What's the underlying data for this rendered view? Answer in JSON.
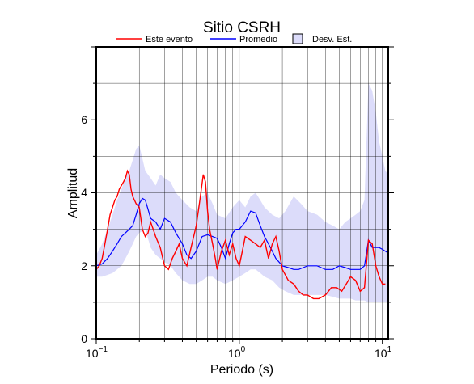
{
  "chart_data": {
    "type": "line",
    "title": "Sitio CSRH",
    "xlabel": "Periodo (s)",
    "ylabel": "Amplitud",
    "x_scale": "log",
    "xlim": [
      0.1,
      11
    ],
    "ylim": [
      0,
      8
    ],
    "grid": true,
    "legend_position": "top",
    "x_ticks": [
      {
        "base": "10",
        "exp": "−1"
      },
      {
        "base": "10",
        "exp": "0"
      },
      {
        "base": "10",
        "exp": "1"
      }
    ],
    "y_ticks": [
      "0",
      "2",
      "4",
      "6"
    ],
    "legend": [
      {
        "label": "Este evento",
        "kind": "line",
        "color": "#ff0000"
      },
      {
        "label": "Promedio",
        "kind": "line",
        "color": "#0000ff"
      },
      {
        "label": "Desv. Est.",
        "kind": "patch",
        "color": "#dcdcfa"
      }
    ],
    "series": [
      {
        "name": "Este evento",
        "color": "#ff0000",
        "x": [
          0.1,
          0.105,
          0.11,
          0.115,
          0.12,
          0.125,
          0.13,
          0.135,
          0.14,
          0.145,
          0.15,
          0.155,
          0.16,
          0.165,
          0.17,
          0.175,
          0.18,
          0.19,
          0.2,
          0.21,
          0.22,
          0.23,
          0.24,
          0.25,
          0.26,
          0.28,
          0.3,
          0.32,
          0.34,
          0.36,
          0.38,
          0.4,
          0.43,
          0.46,
          0.5,
          0.53,
          0.56,
          0.58,
          0.6,
          0.62,
          0.65,
          0.68,
          0.7,
          0.75,
          0.8,
          0.85,
          0.9,
          0.95,
          1.0,
          1.05,
          1.1,
          1.2,
          1.3,
          1.4,
          1.5,
          1.6,
          1.7,
          1.8,
          1.9,
          2.0,
          2.2,
          2.4,
          2.6,
          2.8,
          3.0,
          3.3,
          3.6,
          4.0,
          4.4,
          4.8,
          5.2,
          5.6,
          6.0,
          6.5,
          7.0,
          7.5,
          8.0,
          8.5,
          9.0,
          9.5,
          10.0,
          10.5
        ],
        "y": [
          1.9,
          2.0,
          2.2,
          2.6,
          3.0,
          3.4,
          3.6,
          3.8,
          3.9,
          4.1,
          4.2,
          4.3,
          4.4,
          4.6,
          4.5,
          4.1,
          3.9,
          3.7,
          3.6,
          3.0,
          2.8,
          2.9,
          3.2,
          3.0,
          2.8,
          2.5,
          2.0,
          1.9,
          2.2,
          2.4,
          2.6,
          2.2,
          2.0,
          2.5,
          3.1,
          3.8,
          4.5,
          4.3,
          3.5,
          3.0,
          2.6,
          2.2,
          1.9,
          2.4,
          2.7,
          2.3,
          2.6,
          2.2,
          2.0,
          2.4,
          2.8,
          2.7,
          2.6,
          2.5,
          2.7,
          2.2,
          2.6,
          2.8,
          2.4,
          1.9,
          1.6,
          1.5,
          1.3,
          1.2,
          1.2,
          1.1,
          1.1,
          1.2,
          1.4,
          1.4,
          1.3,
          1.5,
          1.7,
          1.6,
          1.3,
          1.4,
          2.7,
          2.6,
          2.0,
          1.7,
          1.5,
          1.5
        ]
      },
      {
        "name": "Promedio",
        "color": "#0000ff",
        "x": [
          0.1,
          0.11,
          0.12,
          0.13,
          0.14,
          0.15,
          0.16,
          0.17,
          0.18,
          0.19,
          0.2,
          0.21,
          0.22,
          0.23,
          0.24,
          0.26,
          0.28,
          0.3,
          0.33,
          0.36,
          0.4,
          0.43,
          0.46,
          0.5,
          0.55,
          0.6,
          0.65,
          0.7,
          0.75,
          0.8,
          0.85,
          0.9,
          0.95,
          1.0,
          1.1,
          1.2,
          1.3,
          1.4,
          1.5,
          1.6,
          1.7,
          1.8,
          2.0,
          2.2,
          2.4,
          2.6,
          2.8,
          3.0,
          3.5,
          4.0,
          4.5,
          5.0,
          5.5,
          6.0,
          6.5,
          7.0,
          7.5,
          8.0,
          8.5,
          9.0,
          9.5,
          10.0,
          10.5,
          11.0
        ],
        "y": [
          2.0,
          2.05,
          2.2,
          2.4,
          2.6,
          2.8,
          2.9,
          3.0,
          3.1,
          3.4,
          3.7,
          3.85,
          3.8,
          3.55,
          3.3,
          3.2,
          3.0,
          3.3,
          3.2,
          2.9,
          2.6,
          2.3,
          2.2,
          2.4,
          2.8,
          2.85,
          2.8,
          2.75,
          2.5,
          2.2,
          2.6,
          2.9,
          3.0,
          3.0,
          3.2,
          3.5,
          3.45,
          3.1,
          2.8,
          2.6,
          2.4,
          2.2,
          2.0,
          1.95,
          1.9,
          1.9,
          1.95,
          2.0,
          2.0,
          1.9,
          1.9,
          2.0,
          1.95,
          1.9,
          1.9,
          1.9,
          2.0,
          2.7,
          2.5,
          2.5,
          2.5,
          2.45,
          2.4,
          2.35
        ]
      }
    ],
    "std_band": {
      "name": "Desv. Est.",
      "color": "#dcdcfa",
      "x": [
        0.1,
        0.11,
        0.12,
        0.13,
        0.14,
        0.15,
        0.16,
        0.17,
        0.18,
        0.19,
        0.2,
        0.22,
        0.24,
        0.26,
        0.28,
        0.3,
        0.33,
        0.36,
        0.4,
        0.45,
        0.5,
        0.55,
        0.6,
        0.65,
        0.7,
        0.8,
        0.9,
        1.0,
        1.1,
        1.2,
        1.3,
        1.4,
        1.5,
        1.7,
        1.9,
        2.1,
        2.4,
        2.7,
        3.0,
        3.5,
        4.0,
        4.5,
        5.0,
        5.5,
        6.0,
        6.5,
        7.0,
        7.5,
        8.0,
        8.5,
        9.0,
        9.5,
        10.0,
        10.5,
        11.0
      ],
      "upper": [
        2.3,
        2.6,
        3.0,
        3.4,
        3.8,
        4.1,
        4.4,
        4.6,
        4.9,
        5.2,
        5.3,
        4.6,
        4.4,
        4.2,
        4.5,
        4.4,
        4.3,
        4.0,
        3.8,
        3.6,
        3.5,
        3.9,
        4.0,
        3.7,
        3.4,
        3.3,
        3.6,
        3.8,
        3.6,
        3.9,
        4.0,
        3.8,
        3.6,
        3.4,
        3.3,
        3.5,
        3.9,
        3.7,
        3.5,
        3.4,
        3.2,
        3.1,
        3.0,
        3.2,
        3.3,
        3.4,
        3.5,
        3.8,
        7.0,
        6.8,
        6.2,
        5.4,
        5.0,
        4.6,
        4.5
      ],
      "lower": [
        1.7,
        1.7,
        1.75,
        1.8,
        1.9,
        2.0,
        2.2,
        2.4,
        2.6,
        2.8,
        2.9,
        3.0,
        2.5,
        2.3,
        2.2,
        2.1,
        2.0,
        1.8,
        1.6,
        1.5,
        1.5,
        1.6,
        1.7,
        1.7,
        1.6,
        1.5,
        1.6,
        1.7,
        1.8,
        1.9,
        1.9,
        1.8,
        1.7,
        1.6,
        1.4,
        1.3,
        1.2,
        1.2,
        1.2,
        1.2,
        1.2,
        1.15,
        1.1,
        1.1,
        1.1,
        1.05,
        1.05,
        1.05,
        1.0,
        1.0,
        1.0,
        1.0,
        1.0,
        1.0,
        1.0
      ]
    }
  }
}
